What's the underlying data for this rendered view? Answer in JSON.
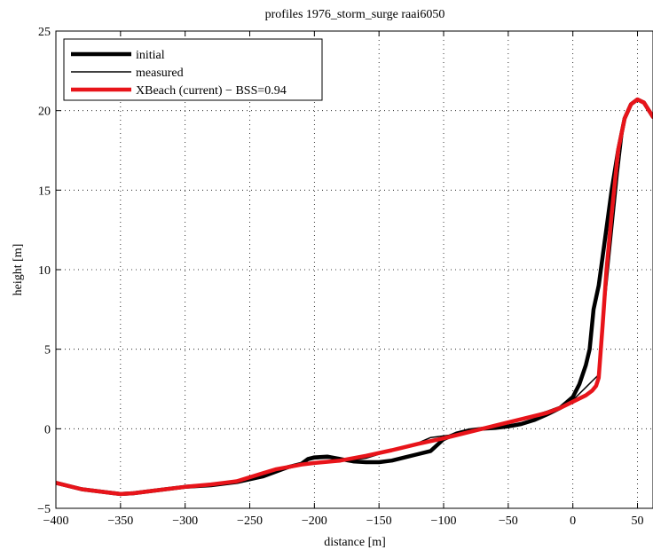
{
  "chart_data": {
    "type": "line",
    "title": "profiles 1976_storm_surge raai6050",
    "xlabel": "distance [m]",
    "ylabel": "height [m]",
    "xlim": [
      -400,
      62
    ],
    "ylim": [
      -5,
      25
    ],
    "xticks": [
      -400,
      -350,
      -300,
      -250,
      -200,
      -150,
      -100,
      -50,
      0,
      50
    ],
    "yticks": [
      -5,
      0,
      5,
      10,
      15,
      20,
      25
    ],
    "grid": true,
    "legend_position": "top-left",
    "series": [
      {
        "name": "initial",
        "color": "#000000",
        "x": [
          -400,
          -380,
          -360,
          -350,
          -340,
          -320,
          -300,
          -280,
          -260,
          -240,
          -220,
          -210,
          -205,
          -200,
          -190,
          -180,
          -170,
          -160,
          -150,
          -140,
          -130,
          -120,
          -110,
          -100,
          -90,
          -80,
          -70,
          -60,
          -50,
          -40,
          -30,
          -20,
          -10,
          0,
          5,
          10,
          13,
          16,
          20,
          25,
          30,
          35,
          40,
          45,
          50,
          55,
          62
        ],
        "y": [
          -3.4,
          -3.8,
          -4.0,
          -4.1,
          -4.05,
          -3.85,
          -3.65,
          -3.55,
          -3.35,
          -3.0,
          -2.4,
          -2.2,
          -1.9,
          -1.8,
          -1.75,
          -1.9,
          -2.05,
          -2.1,
          -2.1,
          -2.0,
          -1.8,
          -1.6,
          -1.4,
          -0.65,
          -0.3,
          -0.1,
          0.0,
          0.05,
          0.15,
          0.3,
          0.55,
          0.9,
          1.3,
          2.0,
          2.8,
          4.0,
          5.0,
          7.5,
          9.0,
          12.0,
          15.0,
          17.5,
          19.5,
          20.4,
          20.7,
          20.5,
          19.6
        ]
      },
      {
        "name": "measured",
        "color": "#000000",
        "x": [
          -400,
          -380,
          -360,
          -350,
          -340,
          -320,
          -300,
          -280,
          -260,
          -240,
          -220,
          -210,
          -205,
          -200,
          -190,
          -180,
          -170,
          -160,
          -150,
          -140,
          -130,
          -120,
          -110,
          -100,
          -90,
          -80,
          -70,
          -60,
          -50,
          -40,
          -30,
          -20,
          -10,
          0,
          5,
          10,
          15,
          20,
          22,
          25,
          30,
          35,
          40,
          45,
          50,
          55,
          62
        ],
        "y": [
          -3.4,
          -3.8,
          -4.0,
          -4.1,
          -4.05,
          -3.85,
          -3.65,
          -3.55,
          -3.35,
          -2.9,
          -2.4,
          -2.2,
          -2.0,
          -1.9,
          -1.85,
          -1.9,
          -1.95,
          -1.85,
          -1.6,
          -1.35,
          -1.2,
          -0.9,
          -0.55,
          -0.45,
          -0.35,
          -0.1,
          0.05,
          0.2,
          0.4,
          0.6,
          0.85,
          1.1,
          1.4,
          1.8,
          2.2,
          2.6,
          3.0,
          3.4,
          5.0,
          8.0,
          12.0,
          16.0,
          19.5,
          20.4,
          20.7,
          20.5,
          19.6
        ]
      },
      {
        "name": "XBeach (current) − BSS=0.94",
        "color": "#e8141a",
        "x": [
          -400,
          -380,
          -360,
          -350,
          -340,
          -320,
          -300,
          -280,
          -260,
          -240,
          -230,
          -220,
          -210,
          -200,
          -180,
          -160,
          -140,
          -120,
          -100,
          -80,
          -60,
          -40,
          -20,
          -10,
          0,
          10,
          15,
          18,
          20,
          23,
          26,
          30,
          35,
          40,
          45,
          50,
          55,
          62
        ],
        "y": [
          -3.4,
          -3.8,
          -4.0,
          -4.1,
          -4.05,
          -3.85,
          -3.65,
          -3.5,
          -3.3,
          -2.8,
          -2.55,
          -2.4,
          -2.25,
          -2.15,
          -2.0,
          -1.7,
          -1.35,
          -0.95,
          -0.6,
          -0.2,
          0.2,
          0.6,
          1.0,
          1.3,
          1.7,
          2.1,
          2.4,
          2.7,
          3.2,
          6.5,
          10.0,
          13.5,
          17.5,
          19.5,
          20.4,
          20.7,
          20.5,
          19.6
        ]
      }
    ]
  }
}
